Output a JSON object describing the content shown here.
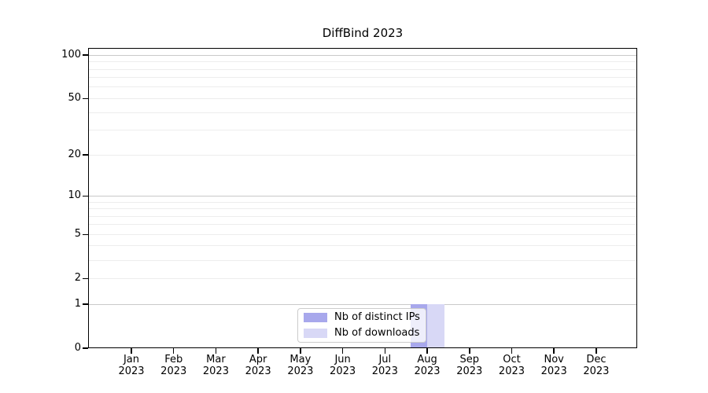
{
  "chart_data": {
    "type": "bar",
    "title": "DiffBind 2023",
    "x_tick_labels": [
      {
        "month": "Jan",
        "year": "2023"
      },
      {
        "month": "Feb",
        "year": "2023"
      },
      {
        "month": "Mar",
        "year": "2023"
      },
      {
        "month": "Apr",
        "year": "2023"
      },
      {
        "month": "May",
        "year": "2023"
      },
      {
        "month": "Jun",
        "year": "2023"
      },
      {
        "month": "Jul",
        "year": "2023"
      },
      {
        "month": "Aug",
        "year": "2023"
      },
      {
        "month": "Sep",
        "year": "2023"
      },
      {
        "month": "Oct",
        "year": "2023"
      },
      {
        "month": "Nov",
        "year": "2023"
      },
      {
        "month": "Dec",
        "year": "2023"
      }
    ],
    "series": [
      {
        "name": "Nb of distinct IPs",
        "color": "#a8a8ec",
        "values": [
          0,
          0,
          0,
          0,
          0,
          0,
          0,
          1,
          0,
          0,
          0,
          0
        ]
      },
      {
        "name": "Nb of downloads",
        "color": "#d8d8f6",
        "values": [
          0,
          0,
          0,
          0,
          0,
          0,
          0,
          1,
          0,
          0,
          0,
          0
        ]
      }
    ],
    "y_axis": {
      "scale": "log1p",
      "tick_values": [
        0,
        1,
        2,
        5,
        10,
        20,
        50,
        100
      ],
      "major_gridline_values": [
        1,
        10,
        100
      ],
      "minor_gridline_values": [
        2,
        3,
        4,
        5,
        6,
        7,
        8,
        9,
        20,
        30,
        40,
        50,
        60,
        70,
        80,
        90
      ],
      "range": [
        0,
        113
      ]
    },
    "legend_position": "lower center",
    "grid": "horizontal",
    "colors": {
      "major_gridline": "#c9c9c9",
      "minor_gridline": "#ededed",
      "spine": "#000000",
      "text": "#000000",
      "background": "#ffffff"
    }
  }
}
